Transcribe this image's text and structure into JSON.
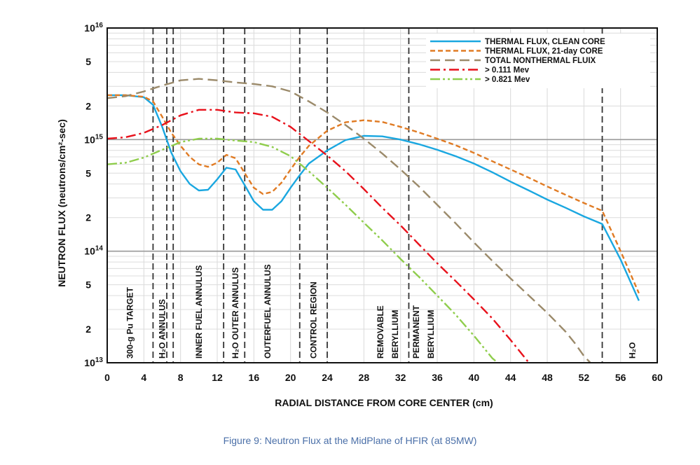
{
  "caption": "Figure 9: Neutron Flux at the MidPlane of HFIR (at 85MW)",
  "chart_data": {
    "type": "line",
    "xlabel": "RADIAL DISTANCE FROM CORE CENTER (cm)",
    "ylabel": "NEUTRON FLUX (neutrons/cm²-sec)",
    "xlim": [
      0,
      60
    ],
    "ylim": [
      10000000000000.0,
      1e+16
    ],
    "y_scale": "log",
    "grid": true,
    "legend_position": "top-right",
    "x_ticks": [
      0,
      4,
      8,
      12,
      16,
      20,
      24,
      28,
      32,
      36,
      40,
      44,
      48,
      52,
      56,
      60
    ],
    "y_ticks": [
      {
        "value": 10000000000000.0,
        "base": "10",
        "exp": "13"
      },
      {
        "value": 20000000000000.0,
        "label": "2"
      },
      {
        "value": 50000000000000.0,
        "label": "5"
      },
      {
        "value": 100000000000000.0,
        "base": "10",
        "exp": "14"
      },
      {
        "value": 200000000000000.0,
        "label": "2"
      },
      {
        "value": 500000000000000.0,
        "label": "5"
      },
      {
        "value": 1000000000000000.0,
        "base": "10",
        "exp": "15"
      },
      {
        "value": 2000000000000000.0,
        "label": "2"
      },
      {
        "value": 5000000000000000.0,
        "label": "5"
      },
      {
        "value": 1e+16,
        "base": "10",
        "exp": "16"
      }
    ],
    "region_boundaries": [
      5,
      6.5,
      7.2,
      12.7,
      15,
      21,
      24,
      32.9,
      54
    ],
    "regions": [
      {
        "label": "300-g Pu TARGET",
        "x": 2.5
      },
      {
        "label": "H₂O ANNULUS",
        "x": 6
      },
      {
        "label": "INNER FUEL ANNULUS",
        "x": 10
      },
      {
        "label": "H₂O OUTER ANNULUS",
        "x": 14
      },
      {
        "label": "OUTERFUEL ANNULUS",
        "x": 17.5
      },
      {
        "label": "CONTROL REGION",
        "x": 22.5
      },
      {
        "label": "REMOVABLE",
        "x": 29.8
      },
      {
        "label": "BERYLLIUM",
        "x": 31.4
      },
      {
        "label": "PERMANENT",
        "x": 33.7
      },
      {
        "label": "BERYLLIUM",
        "x": 35.3
      },
      {
        "label": "H₂O",
        "x": 57.3
      }
    ],
    "series": [
      {
        "name": "THERMAL FLUX, CLEAN CORE",
        "color": "#1aa7e0",
        "dash": "",
        "points": [
          [
            0,
            2500000000000000.0
          ],
          [
            2,
            2500000000000000.0
          ],
          [
            4,
            2400000000000000.0
          ],
          [
            5,
            2050000000000000.0
          ],
          [
            6,
            1300000000000000.0
          ],
          [
            7,
            760000000000000.0
          ],
          [
            8,
            520000000000000.0
          ],
          [
            9,
            400000000000000.0
          ],
          [
            10,
            350000000000000.0
          ],
          [
            11,
            355000000000000.0
          ],
          [
            12,
            440000000000000.0
          ],
          [
            13,
            560000000000000.0
          ],
          [
            14,
            540000000000000.0
          ],
          [
            15,
            390000000000000.0
          ],
          [
            16,
            280000000000000.0
          ],
          [
            17,
            235000000000000.0
          ],
          [
            18,
            235000000000000.0
          ],
          [
            19,
            280000000000000.0
          ],
          [
            20,
            370000000000000.0
          ],
          [
            21,
            480000000000000.0
          ],
          [
            22,
            610000000000000.0
          ],
          [
            24,
            800000000000000.0
          ],
          [
            26,
            990000000000000.0
          ],
          [
            28,
            1080000000000000.0
          ],
          [
            30,
            1070000000000000.0
          ],
          [
            32,
            1000000000000000.0
          ],
          [
            34,
            910000000000000.0
          ],
          [
            36,
            810000000000000.0
          ],
          [
            38,
            710000000000000.0
          ],
          [
            40,
            610000000000000.0
          ],
          [
            42,
            510000000000000.0
          ],
          [
            44,
            420000000000000.0
          ],
          [
            46,
            350000000000000.0
          ],
          [
            48,
            290000000000000.0
          ],
          [
            50,
            245000000000000.0
          ],
          [
            52,
            205000000000000.0
          ],
          [
            54,
            175000000000000.0
          ],
          [
            56,
            84000000000000.0
          ],
          [
            58,
            36000000000000.0
          ]
        ]
      },
      {
        "name": "THERMAL FLUX, 21-day CORE",
        "color": "#e07b24",
        "dash": "7,4",
        "points": [
          [
            0,
            2500000000000000.0
          ],
          [
            2,
            2500000000000000.0
          ],
          [
            4,
            2420000000000000.0
          ],
          [
            5,
            2200000000000000.0
          ],
          [
            6,
            1600000000000000.0
          ],
          [
            7,
            1150000000000000.0
          ],
          [
            8,
            880000000000000.0
          ],
          [
            9,
            700000000000000.0
          ],
          [
            10,
            600000000000000.0
          ],
          [
            11,
            570000000000000.0
          ],
          [
            12,
            620000000000000.0
          ],
          [
            13,
            730000000000000.0
          ],
          [
            14,
            680000000000000.0
          ],
          [
            15,
            500000000000000.0
          ],
          [
            16,
            370000000000000.0
          ],
          [
            17,
            325000000000000.0
          ],
          [
            18,
            340000000000000.0
          ],
          [
            19,
            410000000000000.0
          ],
          [
            20,
            540000000000000.0
          ],
          [
            21,
            700000000000000.0
          ],
          [
            22,
            880000000000000.0
          ],
          [
            24,
            1200000000000000.0
          ],
          [
            26,
            1430000000000000.0
          ],
          [
            28,
            1490000000000000.0
          ],
          [
            30,
            1440000000000000.0
          ],
          [
            32,
            1300000000000000.0
          ],
          [
            34,
            1160000000000000.0
          ],
          [
            36,
            1020000000000000.0
          ],
          [
            38,
            890000000000000.0
          ],
          [
            40,
            760000000000000.0
          ],
          [
            42,
            640000000000000.0
          ],
          [
            44,
            540000000000000.0
          ],
          [
            46,
            455000000000000.0
          ],
          [
            48,
            380000000000000.0
          ],
          [
            50,
            320000000000000.0
          ],
          [
            52,
            270000000000000.0
          ],
          [
            54,
            230000000000000.0
          ],
          [
            56,
            100000000000000.0
          ],
          [
            58,
            42000000000000.0
          ]
        ]
      },
      {
        "name": "TOTAL NONTHERMAL FLUIX",
        "color": "#9b8a6a",
        "dash": "14,7",
        "points": [
          [
            0,
            2350000000000000.0
          ],
          [
            2,
            2450000000000000.0
          ],
          [
            4,
            2700000000000000.0
          ],
          [
            6,
            3050000000000000.0
          ],
          [
            8,
            3400000000000000.0
          ],
          [
            10,
            3500000000000000.0
          ],
          [
            12,
            3400000000000000.0
          ],
          [
            14,
            3250000000000000.0
          ],
          [
            16,
            3150000000000000.0
          ],
          [
            18,
            3000000000000000.0
          ],
          [
            20,
            2700000000000000.0
          ],
          [
            22,
            2200000000000000.0
          ],
          [
            24,
            1750000000000000.0
          ],
          [
            26,
            1350000000000000.0
          ],
          [
            28,
            1020000000000000.0
          ],
          [
            30,
            750000000000000.0
          ],
          [
            32,
            540000000000000.0
          ],
          [
            34,
            380000000000000.0
          ],
          [
            36,
            260000000000000.0
          ],
          [
            38,
            178000000000000.0
          ],
          [
            40,
            120000000000000.0
          ],
          [
            42,
            82000000000000.0
          ],
          [
            44,
            57000000000000.0
          ],
          [
            46,
            40000000000000.0
          ],
          [
            48,
            28000000000000.0
          ],
          [
            50,
            19000000000000.0
          ],
          [
            51,
            15000000000000.0
          ],
          [
            52,
            11500000000000.0
          ],
          [
            52.7,
            10000000000000.0
          ]
        ]
      },
      {
        "name": "> 0.111 Mev",
        "color": "#e8111b",
        "dash": "14,5,3,5",
        "points": [
          [
            0,
            1020000000000000.0
          ],
          [
            2,
            1050000000000000.0
          ],
          [
            4,
            1150000000000000.0
          ],
          [
            6,
            1350000000000000.0
          ],
          [
            8,
            1650000000000000.0
          ],
          [
            10,
            1850000000000000.0
          ],
          [
            12,
            1850000000000000.0
          ],
          [
            14,
            1750000000000000.0
          ],
          [
            16,
            1720000000000000.0
          ],
          [
            18,
            1600000000000000.0
          ],
          [
            20,
            1300000000000000.0
          ],
          [
            22,
            970000000000000.0
          ],
          [
            24,
            720000000000000.0
          ],
          [
            26,
            520000000000000.0
          ],
          [
            28,
            360000000000000.0
          ],
          [
            30,
            245000000000000.0
          ],
          [
            32,
            170000000000000.0
          ],
          [
            34,
            115000000000000.0
          ],
          [
            36,
            78000000000000.0
          ],
          [
            38,
            54000000000000.0
          ],
          [
            40,
            37000000000000.0
          ],
          [
            42,
            25000000000000.0
          ],
          [
            44,
            16000000000000.0
          ],
          [
            46,
            10000000000000.0
          ]
        ]
      },
      {
        "name": "> 0.821 Mev",
        "color": "#8fcd4c",
        "dash": "14,4,3,4,3,4",
        "points": [
          [
            0,
            600000000000000.0
          ],
          [
            2,
            620000000000000.0
          ],
          [
            4,
            690000000000000.0
          ],
          [
            6,
            810000000000000.0
          ],
          [
            8,
            950000000000000.0
          ],
          [
            10,
            1020000000000000.0
          ],
          [
            12,
            1020000000000000.0
          ],
          [
            14,
            980000000000000.0
          ],
          [
            16,
            950000000000000.0
          ],
          [
            18,
            860000000000000.0
          ],
          [
            20,
            710000000000000.0
          ],
          [
            22,
            520000000000000.0
          ],
          [
            24,
            370000000000000.0
          ],
          [
            26,
            260000000000000.0
          ],
          [
            28,
            180000000000000.0
          ],
          [
            30,
            125000000000000.0
          ],
          [
            32,
            85000000000000.0
          ],
          [
            34,
            59000000000000.0
          ],
          [
            36,
            40000000000000.0
          ],
          [
            38,
            27000000000000.0
          ],
          [
            40,
            17500000000000.0
          ],
          [
            42,
            11000000000000.0
          ],
          [
            42.6,
            10000000000000.0
          ]
        ]
      }
    ]
  }
}
